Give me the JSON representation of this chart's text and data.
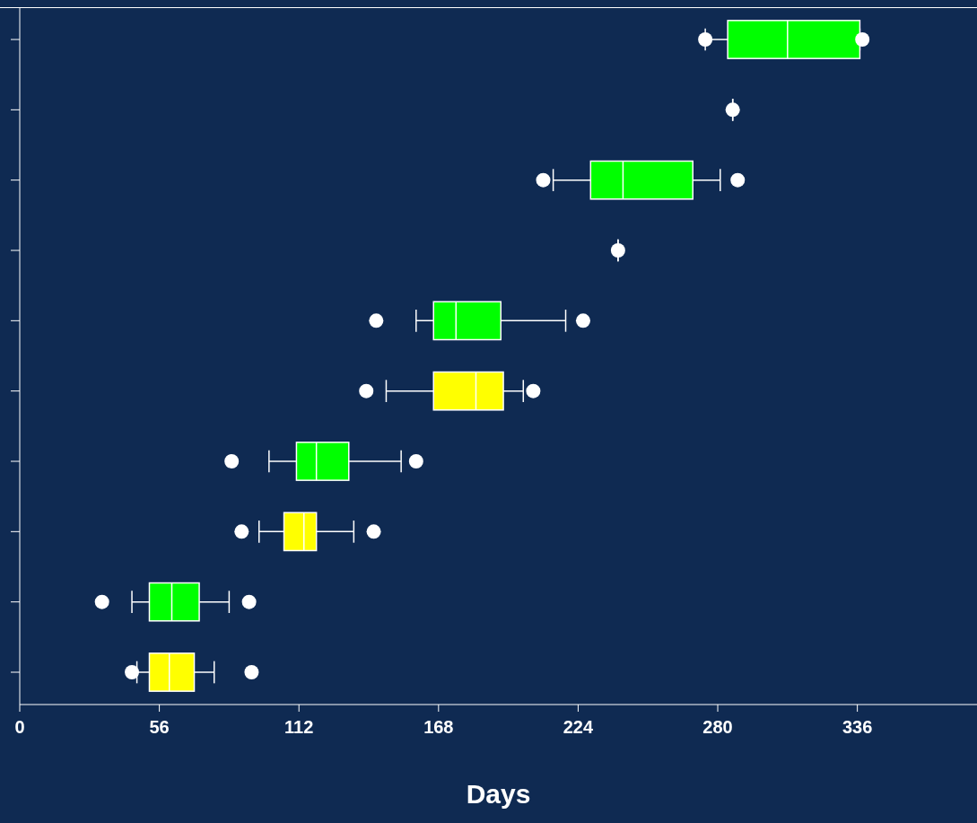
{
  "chart_data": {
    "type": "box",
    "orientation": "horizontal",
    "xlabel": "Days",
    "categories": [
      null,
      null,
      null,
      null,
      null,
      null,
      null,
      null,
      null,
      null
    ],
    "boxes": [
      {
        "low": 275,
        "q1": 284,
        "median": 308,
        "q3": 337,
        "high": 337,
        "outliers": [
          275,
          338
        ]
      },
      {
        "low": 286,
        "q1": 286,
        "median": 286,
        "q3": 286,
        "high": 286,
        "outliers": [
          286
        ]
      },
      {
        "low": 214,
        "q1": 229,
        "median": 242,
        "q3": 270,
        "high": 281,
        "outliers": [
          210,
          288
        ]
      },
      {
        "low": 240,
        "q1": 240,
        "median": 240,
        "q3": 240,
        "high": 240,
        "outliers": [
          240
        ]
      },
      {
        "low": 159,
        "q1": 166,
        "median": 175,
        "q3": 193,
        "high": 219,
        "outliers": [
          143,
          226
        ]
      },
      {
        "low": 147,
        "q1": 166,
        "median": 183,
        "q3": 194,
        "high": 202,
        "outliers": [
          139,
          206
        ]
      },
      {
        "low": 100,
        "q1": 111,
        "median": 119,
        "q3": 132,
        "high": 153,
        "outliers": [
          85,
          159
        ]
      },
      {
        "low": 96,
        "q1": 106,
        "median": 114,
        "q3": 119,
        "high": 134,
        "outliers": [
          89,
          142
        ]
      },
      {
        "low": 45,
        "q1": 52,
        "median": 61,
        "q3": 72,
        "high": 84,
        "outliers": [
          33,
          92
        ]
      },
      {
        "low": 47,
        "q1": 52,
        "median": 60,
        "q3": 70,
        "high": 78,
        "outliers": [
          45,
          93
        ]
      }
    ],
    "colors": [
      "#00ff00",
      "#ffffff",
      "#00ff00",
      "#ffffff",
      "#00ff00",
      "#ffff00",
      "#00ff00",
      "#ffff00",
      "#00ff00",
      "#ffff00"
    ],
    "xlim": [
      0,
      384
    ],
    "xticks": [
      0,
      56,
      112,
      168,
      224,
      280,
      336
    ],
    "grid": false,
    "legend": false
  }
}
